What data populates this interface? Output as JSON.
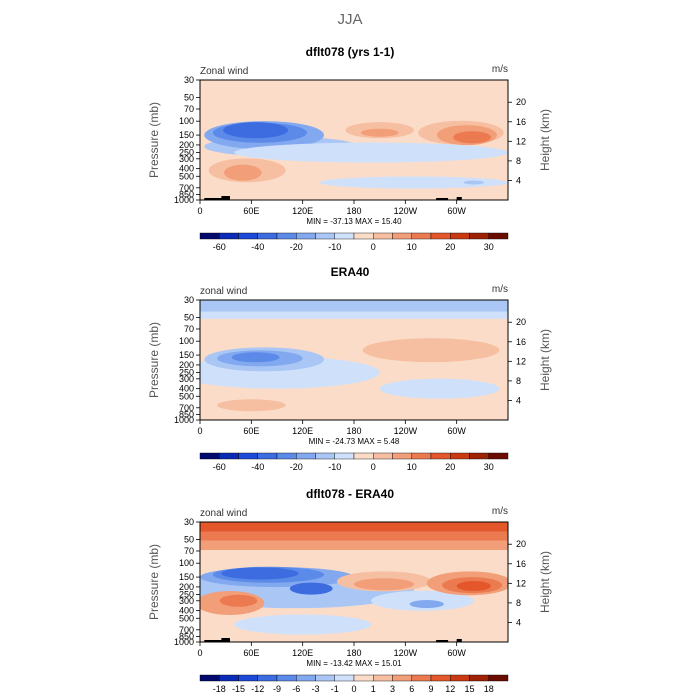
{
  "page_title": "JJA",
  "chart_data": [
    {
      "type": "heatmap",
      "title": "dflt078 (yrs 1-1)",
      "left_label": "Zonal wind",
      "units": "m/s",
      "ylabel": "Pressure (mb)",
      "ylabel_right": "Height (km)",
      "y_ticks": [
        "30",
        "50",
        "70",
        "100",
        "150",
        "200",
        "250",
        "300",
        "400",
        "500",
        "700",
        "850",
        "1000"
      ],
      "y_tick_values": [
        30,
        50,
        70,
        100,
        150,
        200,
        250,
        300,
        400,
        500,
        700,
        850,
        1000
      ],
      "height_ticks": [
        "4",
        "8",
        "12",
        "16",
        "20"
      ],
      "x_ticks": [
        "0",
        "60E",
        "120E",
        "180",
        "120W",
        "60W"
      ],
      "x_tick_values": [
        0,
        60,
        120,
        180,
        240,
        300
      ],
      "xlim": [
        0,
        360
      ],
      "ylim": [
        1000,
        30
      ],
      "stats": "MIN = -37.13   MAX =  15.40",
      "colorbar_ticks": [
        "-60",
        "-40",
        "-20",
        "-10",
        "0",
        "10",
        "20",
        "30"
      ],
      "colorbar_colors": [
        "#020a6e",
        "#0a2bb5",
        "#1c49d8",
        "#3d6ce0",
        "#5c8ae8",
        "#82a9ef",
        "#aac6f5",
        "#cfe0fb",
        "#fbdcc9",
        "#f7bfa1",
        "#f29e78",
        "#ec7a50",
        "#e3572b",
        "#c93a13",
        "#9d2206",
        "#6b0c00"
      ],
      "background": "#fbdcc9",
      "blobs": [
        {
          "lon": 95,
          "p": 210,
          "rx": 90,
          "ry": 5,
          "color": "#aac6f5"
        },
        {
          "lon": 75,
          "p": 150,
          "rx": 70,
          "ry": 7,
          "color": "#82a9ef"
        },
        {
          "lon": 70,
          "p": 140,
          "rx": 55,
          "ry": 5,
          "color": "#5c8ae8"
        },
        {
          "lon": 65,
          "p": 130,
          "rx": 38,
          "ry": 4,
          "color": "#3d6ce0"
        },
        {
          "lon": 200,
          "p": 250,
          "rx": 160,
          "ry": 5,
          "color": "#cfe0fb"
        },
        {
          "lon": 250,
          "p": 600,
          "rx": 110,
          "ry": 3,
          "color": "#cfe0fb"
        },
        {
          "lon": 320,
          "p": 600,
          "rx": 12,
          "ry": 1,
          "color": "#aac6f5"
        },
        {
          "lon": 210,
          "p": 130,
          "rx": 40,
          "ry": 4,
          "color": "#f7bfa1"
        },
        {
          "lon": 210,
          "p": 140,
          "rx": 22,
          "ry": 2,
          "color": "#f29e78"
        },
        {
          "lon": 305,
          "p": 140,
          "rx": 50,
          "ry": 6,
          "color": "#f7bfa1"
        },
        {
          "lon": 312,
          "p": 150,
          "rx": 35,
          "ry": 5,
          "color": "#f29e78"
        },
        {
          "lon": 318,
          "p": 160,
          "rx": 22,
          "ry": 3,
          "color": "#ec7a50"
        },
        {
          "lon": 55,
          "p": 420,
          "rx": 45,
          "ry": 6,
          "color": "#f7bfa1"
        },
        {
          "lon": 50,
          "p": 450,
          "rx": 22,
          "ry": 4,
          "color": "#f29e78"
        }
      ],
      "top_band": [],
      "topography": [
        {
          "lon": 5,
          "width": 30,
          "height": 2
        },
        {
          "lon": 25,
          "width": 10,
          "height": 4
        },
        {
          "lon": 276,
          "width": 14,
          "height": 2
        },
        {
          "lon": 300,
          "width": 6,
          "height": 3
        }
      ]
    },
    {
      "type": "heatmap",
      "title": "ERA40",
      "left_label": "zonal wind",
      "units": "m/s",
      "ylabel": "Pressure (mb)",
      "ylabel_right": "Height (km)",
      "y_ticks": [
        "30",
        "50",
        "70",
        "100",
        "150",
        "200",
        "250",
        "300",
        "400",
        "500",
        "700",
        "850",
        "1000"
      ],
      "y_tick_values": [
        30,
        50,
        70,
        100,
        150,
        200,
        250,
        300,
        400,
        500,
        700,
        850,
        1000
      ],
      "height_ticks": [
        "4",
        "8",
        "12",
        "16",
        "20"
      ],
      "x_ticks": [
        "0",
        "60E",
        "120E",
        "180",
        "120W",
        "60W"
      ],
      "x_tick_values": [
        0,
        60,
        120,
        180,
        240,
        300
      ],
      "xlim": [
        0,
        360
      ],
      "ylim": [
        1000,
        30
      ],
      "stats": "MIN = -24.73   MAX =   5.48",
      "colorbar_ticks": [
        "-60",
        "-40",
        "-20",
        "-10",
        "0",
        "10",
        "20",
        "30"
      ],
      "colorbar_colors": [
        "#020a6e",
        "#0a2bb5",
        "#1c49d8",
        "#3d6ce0",
        "#5c8ae8",
        "#82a9ef",
        "#aac6f5",
        "#cfe0fb",
        "#fbdcc9",
        "#f7bfa1",
        "#f29e78",
        "#ec7a50",
        "#e3572b",
        "#c93a13",
        "#9d2206",
        "#6b0c00"
      ],
      "background": "#fbdcc9",
      "blobs": [
        {
          "lon": 90,
          "p": 250,
          "rx": 120,
          "ry": 8,
          "color": "#cfe0fb"
        },
        {
          "lon": 75,
          "p": 170,
          "rx": 70,
          "ry": 6,
          "color": "#aac6f5"
        },
        {
          "lon": 70,
          "p": 165,
          "rx": 50,
          "ry": 4,
          "color": "#82a9ef"
        },
        {
          "lon": 65,
          "p": 160,
          "rx": 28,
          "ry": 2.5,
          "color": "#5c8ae8"
        },
        {
          "lon": 270,
          "p": 130,
          "rx": 80,
          "ry": 6,
          "color": "#f7bfa1"
        },
        {
          "lon": 280,
          "p": 400,
          "rx": 70,
          "ry": 5,
          "color": "#cfe0fb"
        },
        {
          "lon": 60,
          "p": 650,
          "rx": 40,
          "ry": 3,
          "color": "#f7bfa1"
        }
      ],
      "top_band": [
        {
          "p_top": 30,
          "p_bottom": 42,
          "color": "#aac6f5"
        },
        {
          "p_top": 42,
          "p_bottom": 52,
          "color": "#cfe0fb"
        }
      ],
      "topography": []
    },
    {
      "type": "heatmap",
      "title": "dflt078 - ERA40",
      "left_label": "zonal wind",
      "units": "m/s",
      "ylabel": "Pressure (mb)",
      "ylabel_right": "Height (km)",
      "y_ticks": [
        "30",
        "50",
        "70",
        "100",
        "150",
        "200",
        "250",
        "300",
        "400",
        "500",
        "700",
        "850",
        "1000"
      ],
      "y_tick_values": [
        30,
        50,
        70,
        100,
        150,
        200,
        250,
        300,
        400,
        500,
        700,
        850,
        1000
      ],
      "height_ticks": [
        "4",
        "8",
        "12",
        "16",
        "20"
      ],
      "x_ticks": [
        "0",
        "60E",
        "120E",
        "180",
        "120W",
        "60W"
      ],
      "x_tick_values": [
        0,
        60,
        120,
        180,
        240,
        300
      ],
      "xlim": [
        0,
        360
      ],
      "ylim": [
        1000,
        30
      ],
      "stats": "MIN = -13.42   MAX =  15.01",
      "colorbar_ticks": [
        "-18",
        "-15",
        "-12",
        "-9",
        "-6",
        "-3",
        "-1",
        "0",
        "1",
        "3",
        "6",
        "9",
        "12",
        "15",
        "18"
      ],
      "colorbar_colors": [
        "#020a6e",
        "#0a2bb5",
        "#1c49d8",
        "#3d6ce0",
        "#5c8ae8",
        "#82a9ef",
        "#aac6f5",
        "#cfe0fb",
        "#fbdcc9",
        "#f7bfa1",
        "#f29e78",
        "#ec7a50",
        "#e3572b",
        "#c93a13",
        "#9d2206",
        "#6b0c00"
      ],
      "background": "#fbdcc9",
      "blobs": [
        {
          "lon": 110,
          "p": 220,
          "rx": 140,
          "ry": 9,
          "color": "#aac6f5"
        },
        {
          "lon": 90,
          "p": 150,
          "rx": 90,
          "ry": 5,
          "color": "#82a9ef"
        },
        {
          "lon": 80,
          "p": 140,
          "rx": 65,
          "ry": 4,
          "color": "#5c8ae8"
        },
        {
          "lon": 70,
          "p": 135,
          "rx": 45,
          "ry": 3,
          "color": "#3d6ce0"
        },
        {
          "lon": 130,
          "p": 210,
          "rx": 25,
          "ry": 3,
          "color": "#3d6ce0"
        },
        {
          "lon": 260,
          "p": 300,
          "rx": 60,
          "ry": 5,
          "color": "#cfe0fb"
        },
        {
          "lon": 265,
          "p": 330,
          "rx": 20,
          "ry": 2,
          "color": "#82a9ef"
        },
        {
          "lon": 120,
          "p": 600,
          "rx": 80,
          "ry": 5,
          "color": "#cfe0fb"
        },
        {
          "lon": 215,
          "p": 170,
          "rx": 55,
          "ry": 5,
          "color": "#f7bfa1"
        },
        {
          "lon": 215,
          "p": 185,
          "rx": 35,
          "ry": 3,
          "color": "#f29e78"
        },
        {
          "lon": 315,
          "p": 180,
          "rx": 50,
          "ry": 6,
          "color": "#f29e78"
        },
        {
          "lon": 318,
          "p": 190,
          "rx": 35,
          "ry": 4,
          "color": "#ec7a50"
        },
        {
          "lon": 320,
          "p": 195,
          "rx": 20,
          "ry": 2.5,
          "color": "#e3572b"
        },
        {
          "lon": 35,
          "p": 320,
          "rx": 40,
          "ry": 6,
          "color": "#f29e78"
        },
        {
          "lon": 45,
          "p": 300,
          "rx": 22,
          "ry": 3,
          "color": "#ec7a50"
        }
      ],
      "top_band": [
        {
          "p_top": 30,
          "p_bottom": 40,
          "color": "#e3572b"
        },
        {
          "p_top": 40,
          "p_bottom": 52,
          "color": "#ec7a50"
        },
        {
          "p_top": 52,
          "p_bottom": 68,
          "color": "#f29e78"
        }
      ],
      "topography": [
        {
          "lon": 5,
          "width": 30,
          "height": 2
        },
        {
          "lon": 25,
          "width": 10,
          "height": 4
        },
        {
          "lon": 276,
          "width": 14,
          "height": 2
        },
        {
          "lon": 300,
          "width": 6,
          "height": 3
        }
      ]
    }
  ]
}
